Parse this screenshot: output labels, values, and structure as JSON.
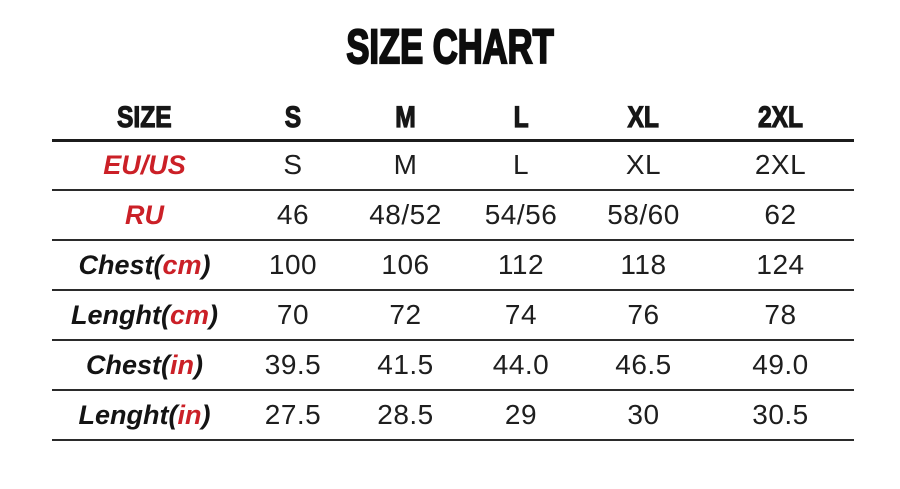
{
  "page": {
    "title": "SIZE CHART"
  },
  "colors": {
    "accent_red": "#cb2027",
    "text": "#1e1e1e",
    "line": "#2b2b2b",
    "background": "#ffffff"
  },
  "chart_data": {
    "type": "table",
    "title": "SIZE CHART",
    "columns": [
      "SIZE",
      "S",
      "M",
      "L",
      "XL",
      "2XL"
    ],
    "rows": [
      {
        "label": "EU/US",
        "label_prefix": "EU/US",
        "label_unit": "",
        "label_suffix": "",
        "label_color": "red",
        "values": [
          "S",
          "M",
          "L",
          "XL",
          "2XL"
        ]
      },
      {
        "label": "RU",
        "label_prefix": "RU",
        "label_unit": "",
        "label_suffix": "",
        "label_color": "red",
        "values": [
          "46",
          "48/52",
          "54/56",
          "58/60",
          "62"
        ]
      },
      {
        "label": "Chest(cm)",
        "label_prefix": "Chest(",
        "label_unit": "cm",
        "label_suffix": ")",
        "label_color": "black",
        "values": [
          "100",
          "106",
          "112",
          "118",
          "124"
        ]
      },
      {
        "label": "Lenght(cm)",
        "label_prefix": "Lenght(",
        "label_unit": "cm",
        "label_suffix": ")",
        "label_color": "black",
        "values": [
          "70",
          "72",
          "74",
          "76",
          "78"
        ]
      },
      {
        "label": "Chest(in)",
        "label_prefix": "Chest(",
        "label_unit": "in",
        "label_suffix": ")",
        "label_color": "black",
        "values": [
          "39.5",
          "41.5",
          "44.0",
          "46.5",
          "49.0"
        ]
      },
      {
        "label": "Lenght(in)",
        "label_prefix": "Lenght(",
        "label_unit": "in",
        "label_suffix": ")",
        "label_color": "black",
        "values": [
          "27.5",
          "28.5",
          "29",
          "30",
          "30.5"
        ]
      }
    ]
  }
}
